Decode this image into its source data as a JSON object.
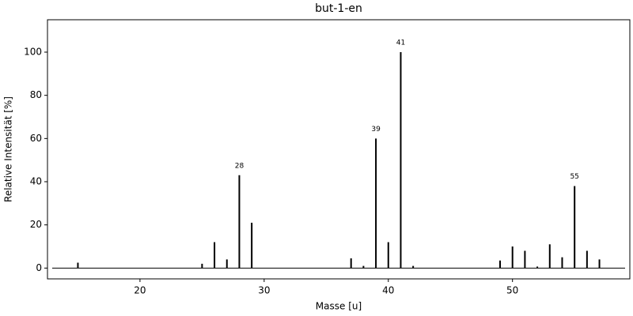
{
  "chart_data": {
    "type": "stem",
    "title": "but-1-en",
    "x_label": "Masse [u]",
    "y_label": "Relative Intensität [%]",
    "x": [
      15,
      25,
      26,
      27,
      28,
      29,
      37,
      38,
      39,
      40,
      41,
      42,
      49,
      50,
      51,
      52,
      53,
      54,
      55,
      56,
      57
    ],
    "values": [
      2.5,
      2,
      12,
      4,
      43,
      21,
      4.5,
      1,
      60,
      12,
      100,
      1,
      3.5,
      10,
      8,
      0.7,
      11,
      5,
      38,
      8,
      4
    ],
    "peak_labels": [
      null,
      null,
      null,
      null,
      "28",
      null,
      null,
      null,
      "39",
      null,
      "41",
      null,
      null,
      null,
      null,
      null,
      null,
      null,
      "55",
      null,
      null
    ],
    "color": "#000000",
    "xlim": [
      12.55,
      59.45
    ],
    "xticks": [
      20,
      30,
      40,
      50
    ],
    "ylim": [
      -5,
      115
    ],
    "yticks": [
      0,
      20,
      40,
      60,
      80,
      100
    ]
  }
}
